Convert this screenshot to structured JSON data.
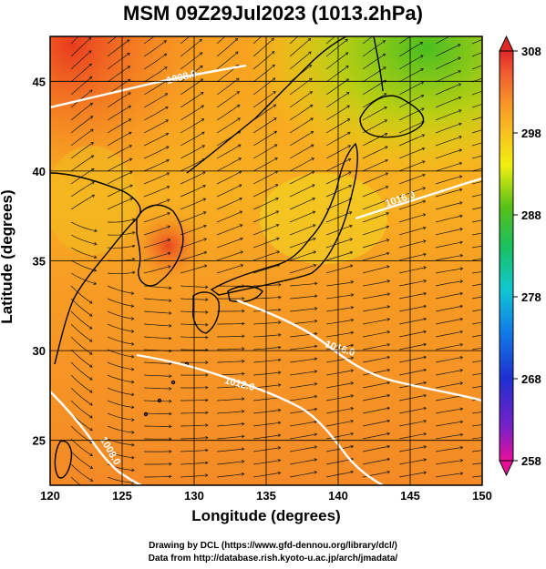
{
  "title": "MSM 09Z29Jul2023 (1013.2hPa)",
  "xlabel": "Longitude (degrees)",
  "ylabel": "Latitude  (degrees)",
  "x_ticks": [
    "120",
    "125",
    "130",
    "135",
    "140",
    "145",
    "150"
  ],
  "y_ticks": [
    "25",
    "30",
    "35",
    "40",
    "45"
  ],
  "colorbar": {
    "labels": [
      "308",
      "298",
      "288",
      "278",
      "268",
      "258"
    ],
    "range": [
      258,
      308
    ],
    "colors": [
      "#e8109a",
      "#7a20c8",
      "#1f2fd0",
      "#1080e8",
      "#10c8d0",
      "#18c060",
      "#58c018",
      "#a8d810",
      "#f0f010",
      "#f8c020",
      "#f89028",
      "#f05830",
      "#e02828"
    ]
  },
  "contours": [
    {
      "label": "1016.0"
    },
    {
      "label": "1012.0"
    },
    {
      "label": "1008.0"
    },
    {
      "label": "1008.0"
    },
    {
      "label": "1016.0"
    }
  ],
  "footer": {
    "line1": "Drawing by DCL (https://www.gfd-dennou.org/library/dcl/)",
    "line2": "Data from http://database.rish.kyoto-u.ac.jp/arch/jmadata/"
  }
}
